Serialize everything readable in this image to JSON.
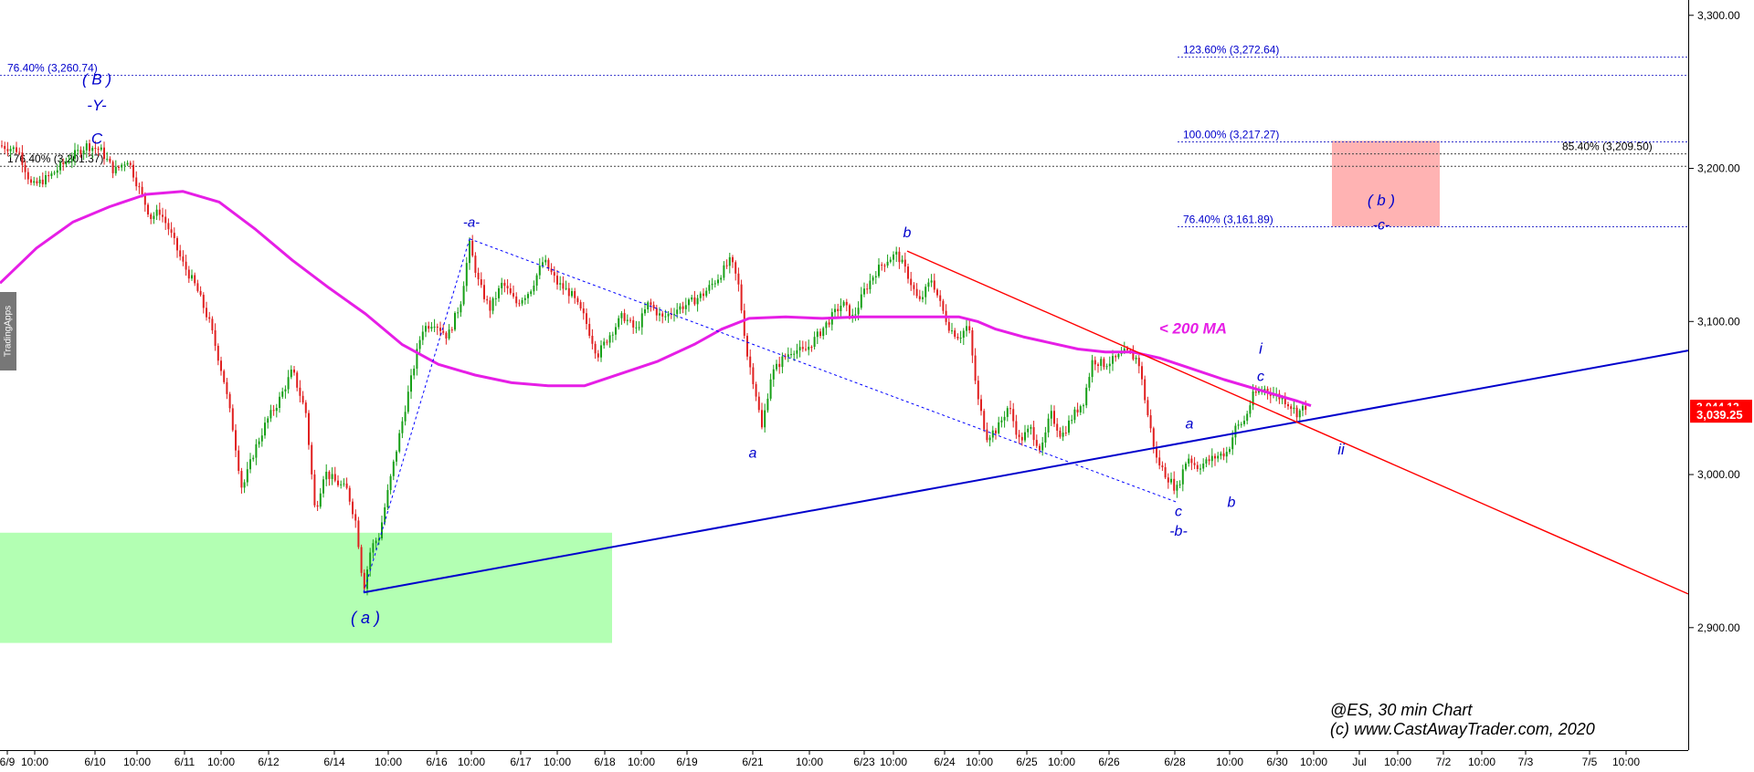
{
  "chart_data": {
    "type": "candlestick",
    "instrument": "@ES",
    "timeframe": "30 min Chart",
    "watermark": "TradingApps",
    "copyright": "(c) www.CastAwayTrader.com, 2020",
    "y_axis": {
      "range": [
        2820,
        3310
      ],
      "ticks": [
        {
          "value": 2900,
          "label": "2,900.00"
        },
        {
          "value": 3000,
          "label": "3,000.00"
        },
        {
          "value": 3100,
          "label": "3,100.00"
        },
        {
          "value": 3200,
          "label": "3,200.00"
        },
        {
          "value": 3300,
          "label": "3,300.00"
        }
      ],
      "last_price_label": "3,039.25",
      "last_price": 3039.25,
      "hidden_price_label": "3,044.12",
      "hidden_price": 3044.12
    },
    "x_axis": {
      "range": [
        0,
        1848
      ],
      "ticks": [
        {
          "i": 8,
          "label": "6/9"
        },
        {
          "i": 38,
          "label": "10:00"
        },
        {
          "i": 104,
          "label": "6/10"
        },
        {
          "i": 150,
          "label": "10:00"
        },
        {
          "i": 202,
          "label": "6/11"
        },
        {
          "i": 242,
          "label": "10:00"
        },
        {
          "i": 294,
          "label": "6/12"
        },
        {
          "i": 366,
          "label": "6/14"
        },
        {
          "i": 425,
          "label": "10:00"
        },
        {
          "i": 478,
          "label": "6/16"
        },
        {
          "i": 516,
          "label": "10:00"
        },
        {
          "i": 570,
          "label": "6/17"
        },
        {
          "i": 610,
          "label": "10:00"
        },
        {
          "i": 662,
          "label": "6/18"
        },
        {
          "i": 702,
          "label": "10:00"
        },
        {
          "i": 752,
          "label": "6/19"
        },
        {
          "i": 824,
          "label": "6/21"
        },
        {
          "i": 886,
          "label": "10:00"
        },
        {
          "i": 946,
          "label": "6/23"
        },
        {
          "i": 978,
          "label": "10:00"
        },
        {
          "i": 1034,
          "label": "6/24"
        },
        {
          "i": 1072,
          "label": "10:00"
        },
        {
          "i": 1124,
          "label": "6/25"
        },
        {
          "i": 1162,
          "label": "10:00"
        },
        {
          "i": 1214,
          "label": "6/26"
        },
        {
          "i": 1286,
          "label": "6/28"
        },
        {
          "i": 1346,
          "label": "10:00"
        },
        {
          "i": 1398,
          "label": "6/30"
        },
        {
          "i": 1438,
          "label": "10:00"
        },
        {
          "i": 1488,
          "label": "Jul"
        },
        {
          "i": 1530,
          "label": "10:00"
        },
        {
          "i": 1580,
          "label": "7/2"
        },
        {
          "i": 1622,
          "label": "10:00"
        },
        {
          "i": 1670,
          "label": "7/3"
        },
        {
          "i": 1740,
          "label": "7/5"
        },
        {
          "i": 1780,
          "label": "10:00"
        }
      ]
    },
    "price_path": [
      [
        0,
        3215
      ],
      [
        20,
        3212
      ],
      [
        35,
        3188
      ],
      [
        55,
        3195
      ],
      [
        75,
        3206
      ],
      [
        95,
        3215
      ],
      [
        110,
        3212
      ],
      [
        125,
        3198
      ],
      [
        140,
        3206
      ],
      [
        150,
        3190
      ],
      [
        165,
        3168
      ],
      [
        175,
        3172
      ],
      [
        185,
        3160
      ],
      [
        200,
        3138
      ],
      [
        215,
        3122
      ],
      [
        230,
        3098
      ],
      [
        245,
        3062
      ],
      [
        255,
        3030
      ],
      [
        265,
        2990
      ],
      [
        278,
        3015
      ],
      [
        292,
        3035
      ],
      [
        305,
        3048
      ],
      [
        320,
        3068
      ],
      [
        335,
        3040
      ],
      [
        345,
        2975
      ],
      [
        355,
        3002
      ],
      [
        368,
        2995
      ],
      [
        380,
        2990
      ],
      [
        390,
        2968
      ],
      [
        398,
        2925
      ],
      [
        406,
        2952
      ],
      [
        415,
        2960
      ],
      [
        425,
        2990
      ],
      [
        438,
        3028
      ],
      [
        450,
        3062
      ],
      [
        462,
        3095
      ],
      [
        475,
        3100
      ],
      [
        490,
        3090
      ],
      [
        504,
        3112
      ],
      [
        514,
        3150
      ],
      [
        524,
        3125
      ],
      [
        536,
        3108
      ],
      [
        550,
        3125
      ],
      [
        565,
        3112
      ],
      [
        580,
        3120
      ],
      [
        595,
        3140
      ],
      [
        610,
        3125
      ],
      [
        625,
        3118
      ],
      [
        640,
        3102
      ],
      [
        654,
        3078
      ],
      [
        668,
        3092
      ],
      [
        682,
        3104
      ],
      [
        696,
        3094
      ],
      [
        710,
        3112
      ],
      [
        725,
        3102
      ],
      [
        740,
        3108
      ],
      [
        755,
        3112
      ],
      [
        770,
        3118
      ],
      [
        785,
        3128
      ],
      [
        800,
        3140
      ],
      [
        808,
        3125
      ],
      [
        818,
        3078
      ],
      [
        826,
        3058
      ],
      [
        834,
        3030
      ],
      [
        844,
        3065
      ],
      [
        856,
        3075
      ],
      [
        868,
        3082
      ],
      [
        880,
        3080
      ],
      [
        894,
        3090
      ],
      [
        908,
        3101
      ],
      [
        922,
        3112
      ],
      [
        934,
        3102
      ],
      [
        946,
        3120
      ],
      [
        958,
        3132
      ],
      [
        970,
        3140
      ],
      [
        982,
        3144
      ],
      [
        994,
        3130
      ],
      [
        1006,
        3112
      ],
      [
        1020,
        3128
      ],
      [
        1030,
        3110
      ],
      [
        1040,
        3095
      ],
      [
        1050,
        3090
      ],
      [
        1060,
        3098
      ],
      [
        1070,
        3050
      ],
      [
        1080,
        3025
      ],
      [
        1092,
        3030
      ],
      [
        1104,
        3045
      ],
      [
        1116,
        3022
      ],
      [
        1128,
        3030
      ],
      [
        1140,
        3015
      ],
      [
        1150,
        3040
      ],
      [
        1162,
        3025
      ],
      [
        1174,
        3038
      ],
      [
        1186,
        3048
      ],
      [
        1196,
        3075
      ],
      [
        1208,
        3072
      ],
      [
        1220,
        3075
      ],
      [
        1232,
        3080
      ],
      [
        1246,
        3075
      ],
      [
        1256,
        3040
      ],
      [
        1266,
        3010
      ],
      [
        1276,
        3000
      ],
      [
        1288,
        2990
      ],
      [
        1300,
        3012
      ],
      [
        1310,
        3005
      ],
      [
        1320,
        3008
      ],
      [
        1332,
        3012
      ],
      [
        1344,
        3015
      ],
      [
        1352,
        3030
      ],
      [
        1362,
        3035
      ],
      [
        1372,
        3052
      ],
      [
        1384,
        3056
      ],
      [
        1396,
        3052
      ],
      [
        1408,
        3048
      ],
      [
        1420,
        3040
      ],
      [
        1430,
        3045
      ]
    ],
    "ma_200": {
      "label": "< 200 MA",
      "color": "#e61ee6",
      "points": [
        [
          0,
          3125
        ],
        [
          40,
          3148
        ],
        [
          80,
          3165
        ],
        [
          120,
          3175
        ],
        [
          160,
          3183
        ],
        [
          200,
          3185
        ],
        [
          240,
          3178
        ],
        [
          280,
          3160
        ],
        [
          320,
          3140
        ],
        [
          360,
          3122
        ],
        [
          400,
          3105
        ],
        [
          440,
          3085
        ],
        [
          480,
          3072
        ],
        [
          520,
          3065
        ],
        [
          560,
          3060
        ],
        [
          600,
          3058
        ],
        [
          640,
          3058
        ],
        [
          680,
          3066
        ],
        [
          720,
          3074
        ],
        [
          760,
          3085
        ],
        [
          790,
          3095
        ],
        [
          820,
          3102
        ],
        [
          860,
          3103
        ],
        [
          900,
          3102
        ],
        [
          940,
          3103
        ],
        [
          980,
          3103
        ],
        [
          1020,
          3103
        ],
        [
          1050,
          3103
        ],
        [
          1070,
          3100
        ],
        [
          1090,
          3095
        ],
        [
          1120,
          3090
        ],
        [
          1150,
          3086
        ],
        [
          1180,
          3082
        ],
        [
          1210,
          3080
        ],
        [
          1240,
          3080
        ],
        [
          1270,
          3076
        ],
        [
          1300,
          3070
        ],
        [
          1340,
          3062
        ],
        [
          1380,
          3055
        ],
        [
          1420,
          3048
        ],
        [
          1435,
          3045
        ]
      ]
    },
    "trendlines": [
      {
        "name": "blue-support",
        "color": "#0000cc",
        "width": 2,
        "from": [
          398,
          2923
        ],
        "to": [
          1848,
          3081
        ]
      },
      {
        "name": "red-resistance",
        "color": "#ff0000",
        "width": 1.4,
        "from": [
          993,
          3146
        ],
        "to": [
          1848,
          2922
        ]
      },
      {
        "name": "dotted-a-wave",
        "color": "#0000ff",
        "dash": true,
        "from": [
          398,
          2923
        ],
        "to": [
          514,
          3154
        ]
      },
      {
        "name": "dotted-channel",
        "color": "#0000ff",
        "dash": true,
        "from": [
          514,
          3154
        ],
        "to": [
          1288,
          2982
        ]
      }
    ],
    "fib_levels": [
      {
        "label": "76.40% (3,260.74)",
        "value": 3260.74,
        "x_from": 0,
        "x_to": 1848,
        "label_x": 8,
        "color": "#0000cc"
      },
      {
        "label": "176.40% (3,201.37)",
        "value": 3201.37,
        "x_from": 0,
        "x_to": 1848,
        "label_x": 8,
        "color": "#000000"
      },
      {
        "label": "123.60% (3,272.64)",
        "value": 3272.64,
        "x_from": 1289,
        "x_to": 1848,
        "label_x": 1295,
        "color": "#0000cc"
      },
      {
        "label": "100.00% (3,217.27)",
        "value": 3217.27,
        "x_from": 1289,
        "x_to": 1848,
        "label_x": 1295,
        "color": "#0000cc"
      },
      {
        "label": "76.40% (3,161.89)",
        "value": 3161.89,
        "x_from": 1289,
        "x_to": 1848,
        "label_x": 1295,
        "color": "#0000cc"
      },
      {
        "label": "85.40% (3,209.50)",
        "value": 3209.5,
        "x_from": 0,
        "x_to": 1848,
        "label_x": 1710,
        "color": "#000000"
      }
    ],
    "zones": [
      {
        "name": "support-zone",
        "color": "#b3ffb3",
        "x_from": 0,
        "x_to": 670,
        "y_from": 2890,
        "y_to": 2962
      },
      {
        "name": "target-zone",
        "color": "#ffb3b3",
        "x_from": 1458,
        "x_to": 1576,
        "y_from": 3162,
        "y_to": 3218
      }
    ],
    "annotations": [
      {
        "text": "( B )",
        "i": 106,
        "value": 3255,
        "color": "#0000cc",
        "italic": true,
        "size": 17
      },
      {
        "text": "-Y-",
        "i": 106,
        "value": 3238,
        "color": "#0000cc",
        "italic": true,
        "size": 17
      },
      {
        "text": "C",
        "i": 106,
        "value": 3216,
        "color": "#0000cc",
        "italic": true,
        "size": 17
      },
      {
        "text": "-a-",
        "i": 516,
        "value": 3162,
        "color": "#0000cc",
        "italic": true,
        "size": 15
      },
      {
        "text": "b",
        "i": 993,
        "value": 3155,
        "color": "#0000cc",
        "italic": true,
        "size": 16
      },
      {
        "text": "a",
        "i": 824,
        "value": 3011,
        "color": "#0000cc",
        "italic": true,
        "size": 16
      },
      {
        "text": "( a )",
        "i": 400,
        "value": 2903,
        "color": "#0000cc",
        "italic": true,
        "size": 18
      },
      {
        "text": "a",
        "i": 1302,
        "value": 3030,
        "color": "#0000cc",
        "italic": true,
        "size": 16
      },
      {
        "text": "c",
        "i": 1290,
        "value": 2973,
        "color": "#0000cc",
        "italic": true,
        "size": 16
      },
      {
        "text": "-b-",
        "i": 1290,
        "value": 2960,
        "color": "#0000cc",
        "italic": true,
        "size": 16
      },
      {
        "text": "b",
        "i": 1348,
        "value": 2979,
        "color": "#0000cc",
        "italic": true,
        "size": 16
      },
      {
        "text": "i",
        "i": 1380,
        "value": 3079,
        "color": "#0000cc",
        "italic": true,
        "size": 17
      },
      {
        "text": "c",
        "i": 1380,
        "value": 3061,
        "color": "#0000cc",
        "italic": true,
        "size": 16
      },
      {
        "text": "ii",
        "i": 1468,
        "value": 3013,
        "color": "#0000cc",
        "italic": true,
        "size": 17
      },
      {
        "text": "( b )",
        "i": 1512,
        "value": 3176,
        "color": "#0000cc",
        "italic": true,
        "size": 17
      },
      {
        "text": "-c-",
        "i": 1512,
        "value": 3160,
        "color": "#0000cc",
        "italic": true,
        "size": 16
      },
      {
        "text": "< 200 MA",
        "i": 1306,
        "value": 3092,
        "color": "#e61ee6",
        "italic": true,
        "size": 17,
        "bold": true
      }
    ],
    "colors": {
      "up_candle": "#18a018",
      "down_candle": "#e02020",
      "last_price_bg": "#ff0000",
      "hidden_price_bg": "#ff0000",
      "grid": "#c8c8c8"
    }
  }
}
